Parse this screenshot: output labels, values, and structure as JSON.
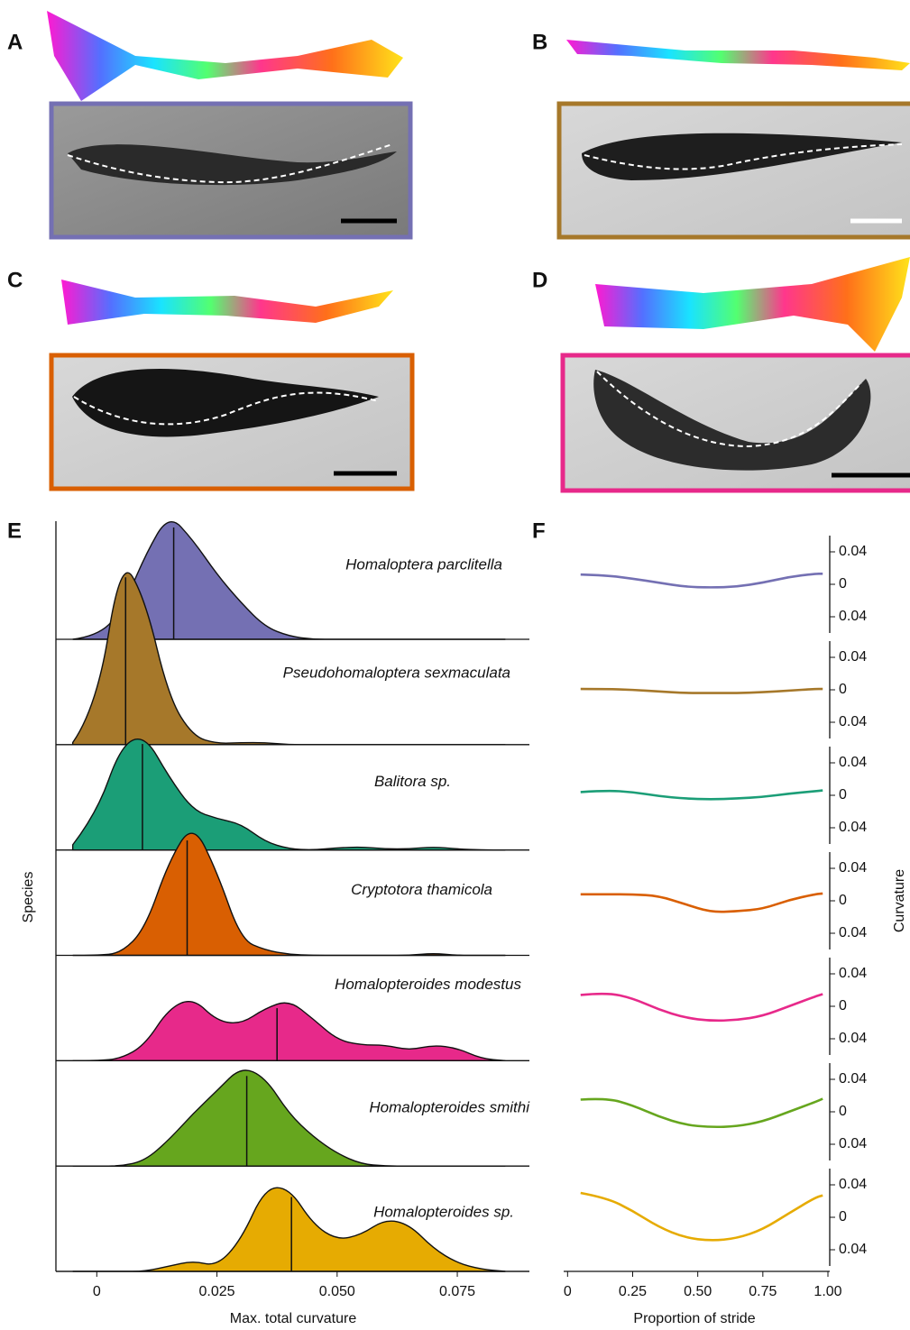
{
  "panel_labels": [
    "A",
    "B",
    "C",
    "D",
    "E",
    "F"
  ],
  "chart_data": [
    {
      "type": "ridgeline",
      "x_label": "Max. total curvature",
      "y_label": "Species",
      "xlim": [
        -0.0085,
        0.09
      ],
      "xticks": [
        0,
        0.025,
        {
          "value": 0.05,
          "label": "0.050"
        },
        0.075
      ],
      "x": [
        -0.005,
        0,
        0.005,
        0.01,
        0.015,
        0.02,
        0.025,
        0.03,
        0.035,
        0.04,
        0.045,
        0.05,
        0.055,
        0.06,
        0.065,
        0.07,
        0.075,
        0.08,
        0.085
      ],
      "series": [
        {
          "name": "Homaloptera parclitella",
          "color": "#7470b3",
          "median": 0.016,
          "values": [
            0,
            0.03,
            0.25,
            0.8,
            1.2,
            0.95,
            0.62,
            0.35,
            0.12,
            0.03,
            0,
            0,
            0,
            0,
            0,
            0,
            0,
            0,
            0
          ]
        },
        {
          "name": "Pseudohomaloptera sexmaculata",
          "color": "#a6782a",
          "median": 0.006,
          "values": [
            0.02,
            0.35,
            1.8,
            1.4,
            0.45,
            0.08,
            0.01,
            0.02,
            0.02,
            0,
            0,
            0,
            0,
            0,
            0,
            0,
            0,
            0,
            0
          ]
        },
        {
          "name": "Balitora sp.",
          "color": "#1b9e77",
          "median": 0.0095,
          "values": [
            0.05,
            0.35,
            1.0,
            1.1,
            0.7,
            0.38,
            0.3,
            0.25,
            0.08,
            0.01,
            0,
            0.02,
            0.03,
            0.01,
            0.01,
            0.03,
            0.01,
            0,
            0
          ]
        },
        {
          "name": "Cryptotora thamicola",
          "color": "#d95f02",
          "median": 0.0188,
          "values": [
            0,
            0,
            0.02,
            0.25,
            0.9,
            1.27,
            0.8,
            0.15,
            0.05,
            0.01,
            0,
            0,
            0,
            0,
            0,
            0.02,
            0,
            0,
            0
          ]
        },
        {
          "name": "Homalopteroides modestus",
          "color": "#e7298a",
          "median": 0.0375,
          "values": [
            0,
            0,
            0.02,
            0.15,
            0.5,
            0.6,
            0.38,
            0.35,
            0.5,
            0.58,
            0.4,
            0.2,
            0.15,
            0.15,
            0.1,
            0.15,
            0.12,
            0.02,
            0
          ]
        },
        {
          "name": "Homalopteroides smithi",
          "color": "#66a61e",
          "median": 0.0312,
          "values": [
            0,
            0,
            0,
            0.05,
            0.25,
            0.5,
            0.72,
            0.95,
            0.85,
            0.5,
            0.28,
            0.12,
            0.02,
            0,
            0,
            0,
            0,
            0,
            0
          ]
        },
        {
          "name": "Homalopteroides sp.",
          "color": "#e6ab02",
          "median": 0.0405,
          "values": [
            0,
            0,
            0,
            0,
            0.05,
            0.1,
            0.05,
            0.3,
            0.8,
            0.8,
            0.45,
            0.3,
            0.35,
            0.5,
            0.45,
            0.22,
            0.08,
            0.02,
            0
          ]
        }
      ]
    },
    {
      "type": "line",
      "x_label": "Proportion of stride",
      "y_label": "Curvature",
      "xlim": [
        -0.015,
        1.0
      ],
      "xticks": [
        0,
        0.25,
        {
          "value": 0.5,
          "label": "0.50"
        },
        0.75,
        {
          "value": 1,
          "label": "1.00"
        }
      ],
      "ylim": [
        -0.06,
        0.06
      ],
      "yticks": [
        0.04,
        0,
        {
          "value": -0.04,
          "label": "0.04"
        }
      ],
      "x": [
        0.05,
        0.15,
        0.25,
        0.35,
        0.45,
        0.55,
        0.65,
        0.75,
        0.85,
        0.95,
        0.98
      ],
      "series": [
        {
          "color": "#7470b3",
          "values": [
            0.012,
            0.011,
            0.007,
            0.002,
            -0.003,
            -0.004,
            -0.003,
            0.002,
            0.009,
            0.013,
            0.013
          ]
        },
        {
          "color": "#a6782a",
          "values": [
            0.001,
            0.001,
            0,
            -0.002,
            -0.004,
            -0.004,
            -0.004,
            -0.003,
            -0.001,
            0.001,
            0.001
          ]
        },
        {
          "color": "#1b9e77",
          "values": [
            0.004,
            0.006,
            0.004,
            -0.001,
            -0.004,
            -0.005,
            -0.004,
            -0.002,
            0.002,
            0.005,
            0.006
          ]
        },
        {
          "color": "#d95f02",
          "values": [
            0.008,
            0.008,
            0.008,
            0.006,
            -0.004,
            -0.014,
            -0.013,
            -0.01,
            0.001,
            0.008,
            0.009
          ]
        },
        {
          "color": "#e7298a",
          "values": [
            0.014,
            0.017,
            0.01,
            -0.004,
            -0.014,
            -0.018,
            -0.017,
            -0.012,
            0,
            0.012,
            0.015
          ]
        },
        {
          "color": "#66a61e",
          "values": [
            0.015,
            0.017,
            0.008,
            -0.006,
            -0.016,
            -0.019,
            -0.018,
            -0.012,
            0,
            0.012,
            0.016
          ]
        },
        {
          "color": "#e6ab02",
          "values": [
            0.03,
            0.024,
            0.008,
            -0.012,
            -0.025,
            -0.029,
            -0.026,
            -0.015,
            0.005,
            0.024,
            0.027
          ]
        }
      ]
    }
  ]
}
